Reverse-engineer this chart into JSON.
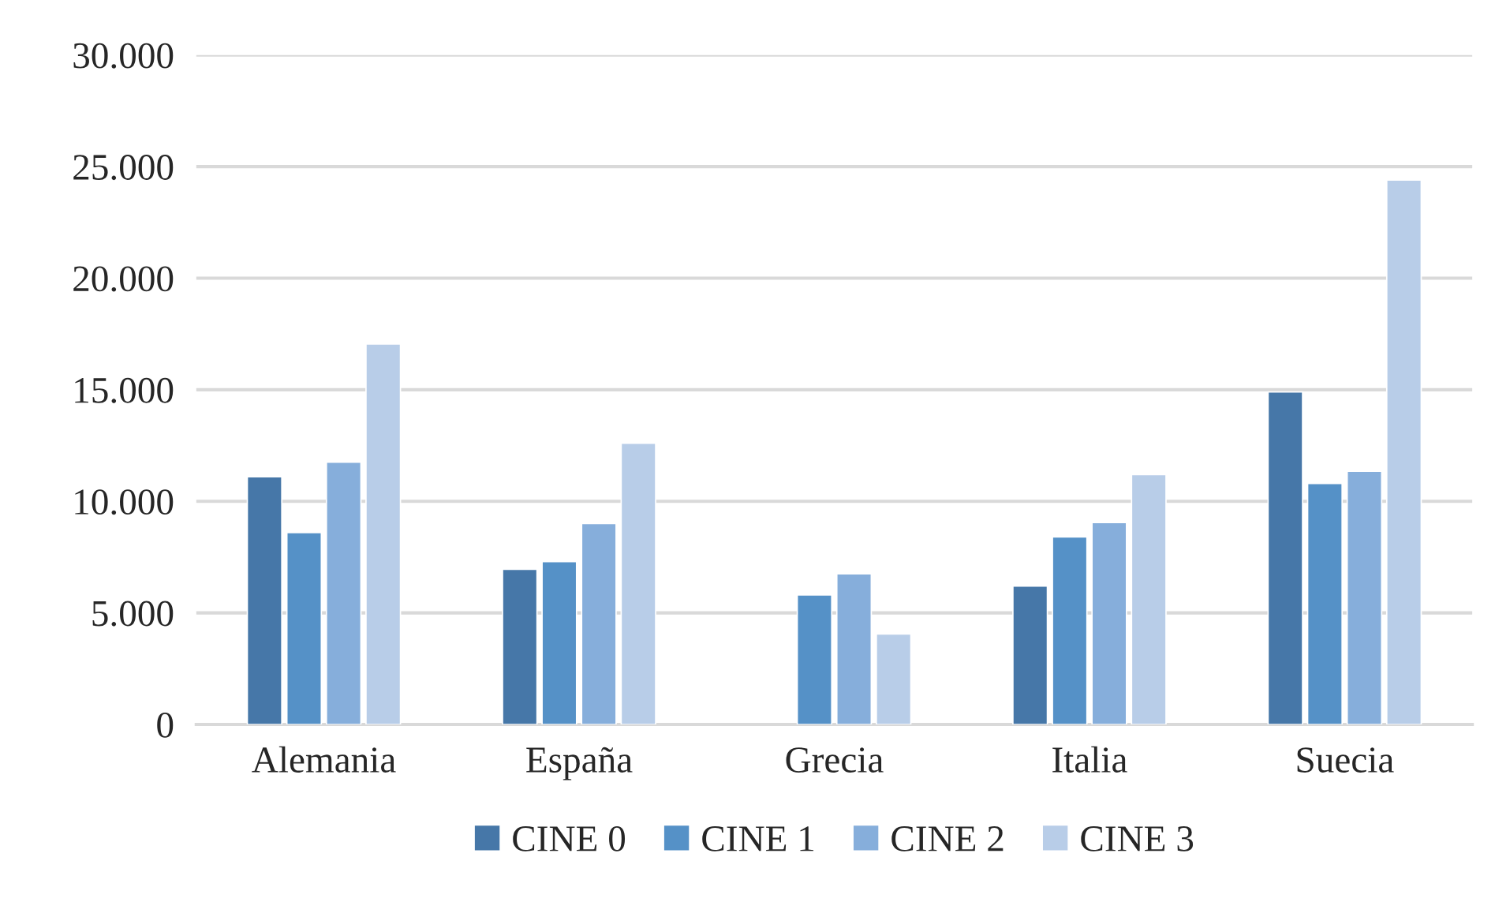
{
  "chart_data": {
    "type": "bar",
    "categories": [
      "Alemania",
      "España",
      "Grecia",
      "Italia",
      "Suecia"
    ],
    "series": [
      {
        "name": "CINE 0",
        "color": "#4677a8",
        "values": [
          11100,
          6950,
          null,
          6200,
          14900
        ]
      },
      {
        "name": "CINE 1",
        "color": "#5591c7",
        "values": [
          8600,
          7300,
          5800,
          8400,
          10800
        ]
      },
      {
        "name": "CINE 2",
        "color": "#86aedb",
        "values": [
          11750,
          9000,
          6750,
          9050,
          11350
        ]
      },
      {
        "name": "CINE 3",
        "color": "#b8cde8",
        "values": [
          17050,
          12600,
          4050,
          11200,
          24400
        ]
      }
    ],
    "ylim": [
      0,
      30000
    ],
    "yticks": [
      {
        "value": 0,
        "label": "0"
      },
      {
        "value": 5000,
        "label": "5.000"
      },
      {
        "value": 10000,
        "label": "10.000"
      },
      {
        "value": 15000,
        "label": "15.000"
      },
      {
        "value": 20000,
        "label": "20.000"
      },
      {
        "value": 25000,
        "label": "25.000"
      },
      {
        "value": 30000,
        "label": "30.000"
      }
    ],
    "grid": "y",
    "legend": "bottom"
  }
}
